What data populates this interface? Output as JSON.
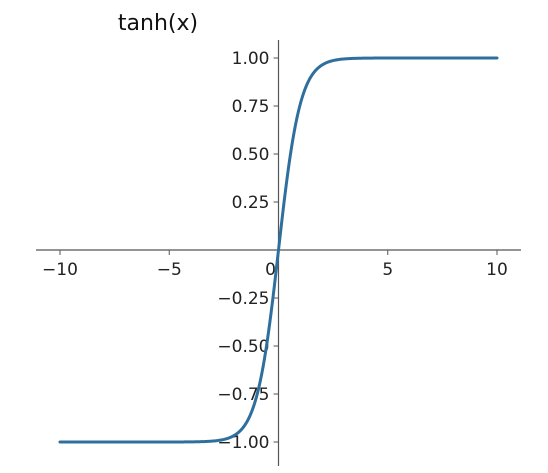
{
  "chart_data": {
    "type": "line",
    "title": "tanh(x)",
    "xlabel": "",
    "ylabel": "",
    "function": "tanh",
    "xlim": [
      -10,
      10
    ],
    "ylim": [
      -1,
      1
    ],
    "x_ticks": [
      -10,
      -5,
      0,
      5,
      10
    ],
    "x_tick_labels": [
      "−10",
      "−5",
      "0",
      "5",
      "10"
    ],
    "y_ticks": [
      1.0,
      0.75,
      0.5,
      0.25,
      -0.25,
      -0.5,
      -0.75,
      -1.0
    ],
    "y_tick_labels": [
      "1.00",
      "0.75",
      "0.50",
      "0.25",
      "−0.25",
      "−0.50",
      "−0.75",
      "−1.00"
    ],
    "series": [
      {
        "color": "#2e6f9e",
        "x": [
          -10,
          -4,
          -3,
          -2.5,
          -2,
          -1.5,
          -1,
          -0.5,
          0,
          0.5,
          1,
          1.5,
          2,
          2.5,
          3,
          4,
          10
        ],
        "y": [
          -1.0,
          -0.999,
          -0.995,
          -0.987,
          -0.964,
          -0.905,
          -0.762,
          -0.462,
          0.0,
          0.462,
          0.762,
          0.905,
          0.964,
          0.987,
          0.995,
          0.999,
          1.0
        ]
      }
    ],
    "spines": "centered",
    "grid": false,
    "legend": "none"
  }
}
